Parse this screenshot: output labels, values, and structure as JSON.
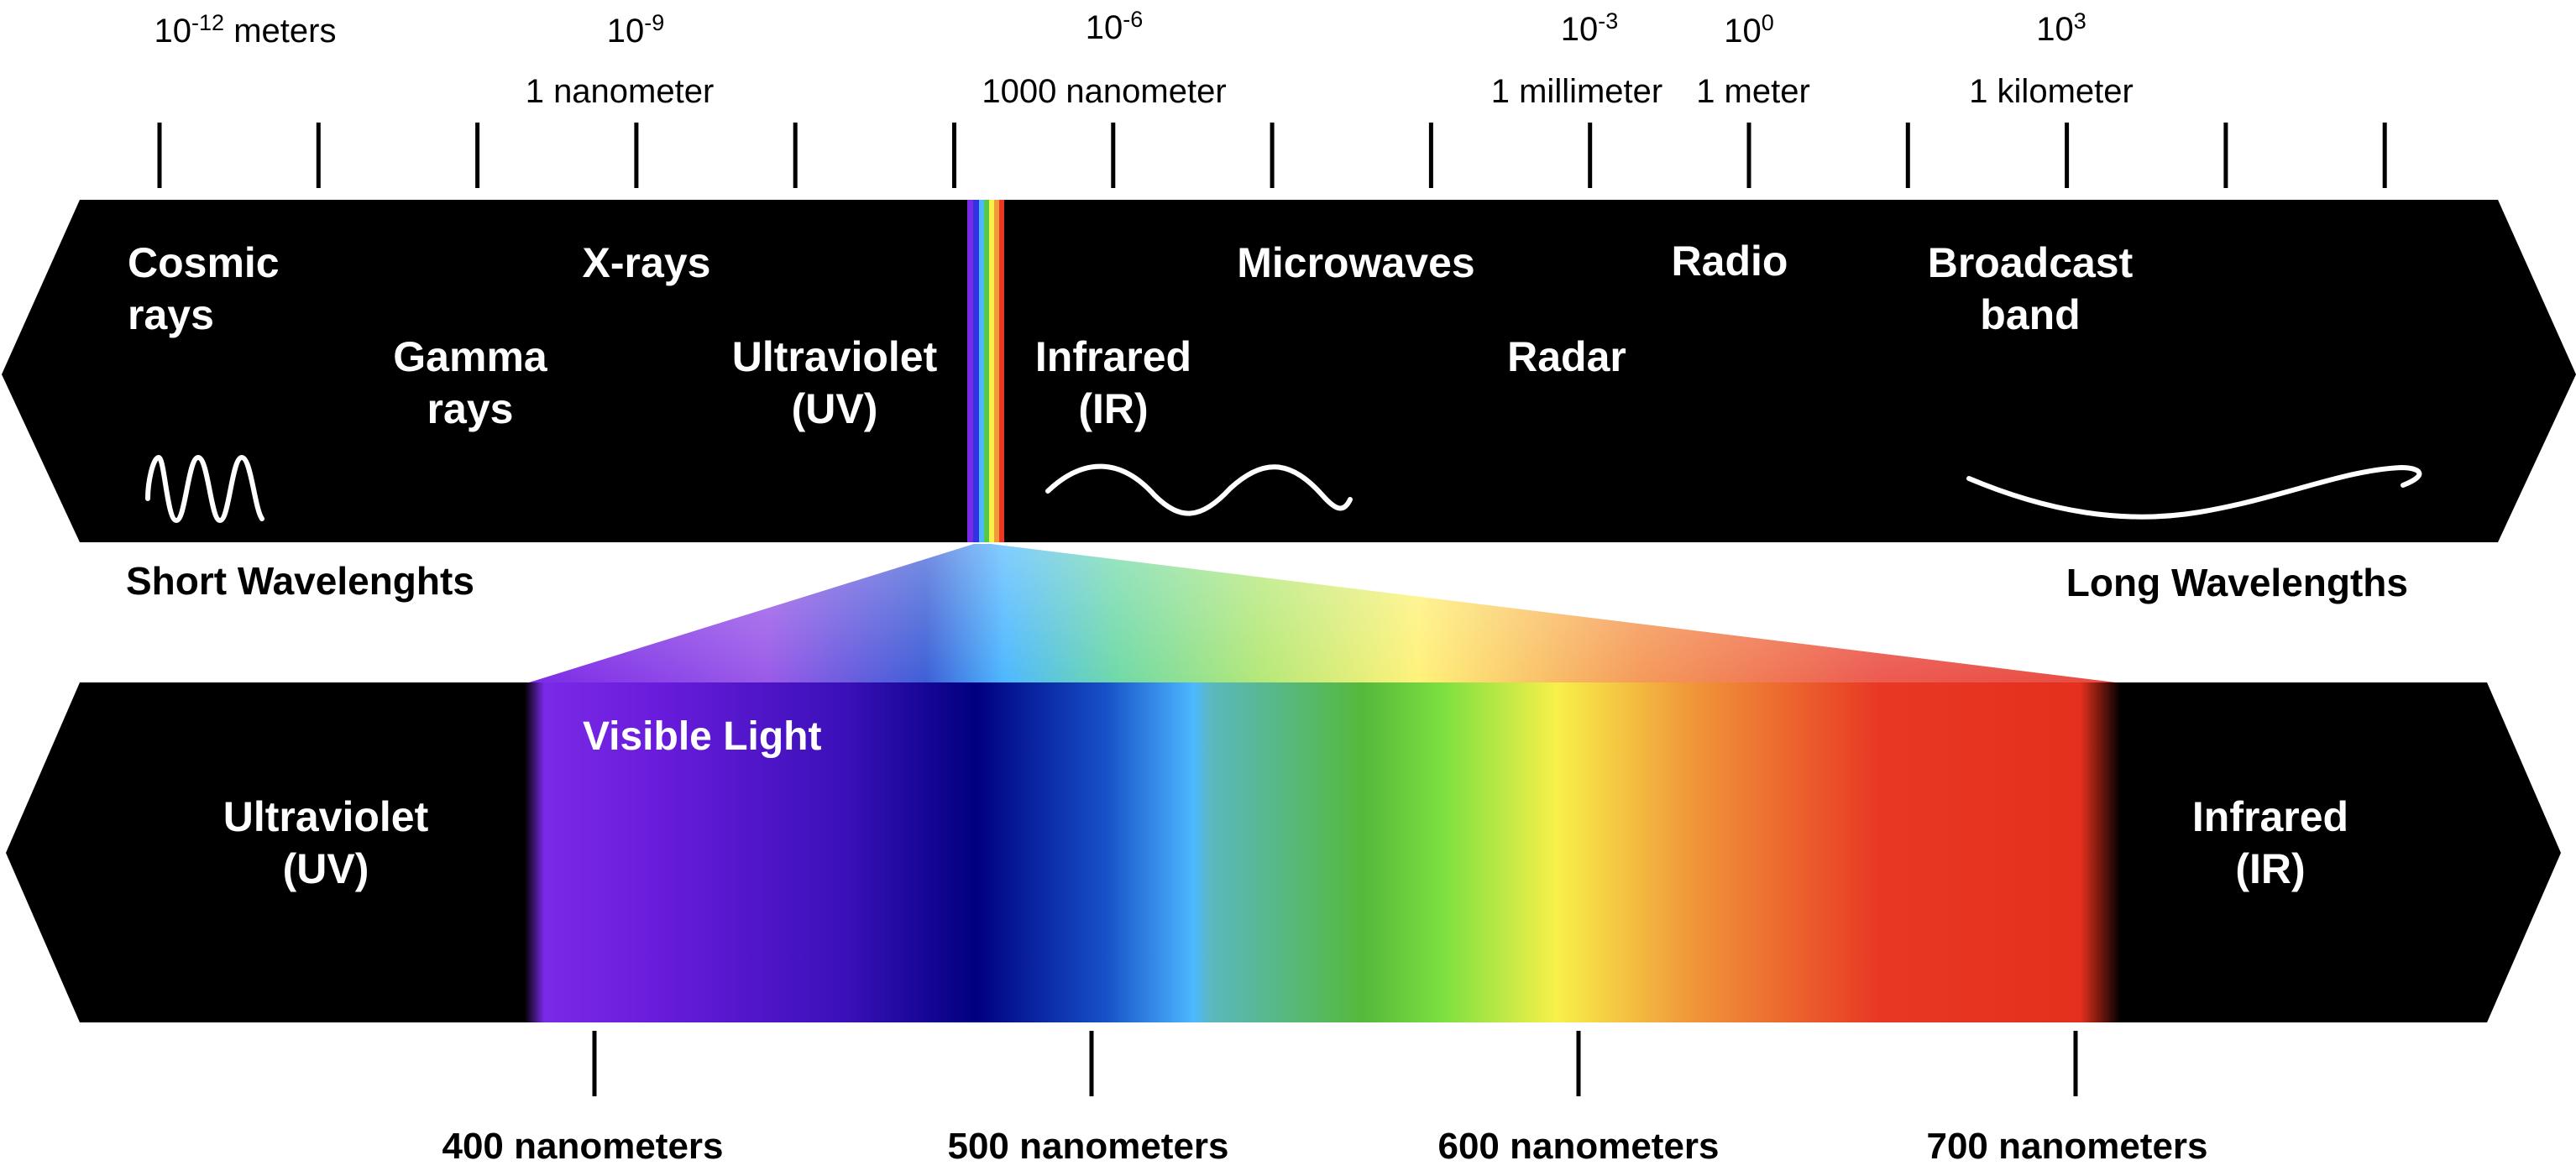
{
  "scale_labels": [
    {
      "id": "m12",
      "base": "10",
      "exp": "-12",
      "unit": " meters",
      "sub": ""
    },
    {
      "id": "m9",
      "base": "10",
      "exp": "-9",
      "unit": "",
      "sub": "1 nanometer"
    },
    {
      "id": "m6",
      "base": "10",
      "exp": "-6",
      "unit": "",
      "sub": "1000 nanometer"
    },
    {
      "id": "m3",
      "base": "10",
      "exp": "-3",
      "unit": "",
      "sub": "1 millimeter"
    },
    {
      "id": "m0",
      "base": "10",
      "exp": "0",
      "unit": "",
      "sub": "1 meter"
    },
    {
      "id": "p3",
      "base": "10",
      "exp": "3",
      "unit": "",
      "sub": "1 kilometer"
    }
  ],
  "spectrum_bands": [
    {
      "id": "cosmic",
      "lines": [
        "Cosmic",
        "rays"
      ]
    },
    {
      "id": "gamma",
      "lines": [
        "Gamma",
        "rays"
      ]
    },
    {
      "id": "xrays",
      "lines": [
        "X-rays"
      ]
    },
    {
      "id": "uv",
      "lines": [
        "Ultraviolet",
        "(UV)"
      ]
    },
    {
      "id": "ir",
      "lines": [
        "Infrared",
        "(IR)"
      ]
    },
    {
      "id": "microwaves",
      "lines": [
        "Microwaves"
      ]
    },
    {
      "id": "radar",
      "lines": [
        "Radar"
      ]
    },
    {
      "id": "radio",
      "lines": [
        "Radio"
      ]
    },
    {
      "id": "broadcast",
      "lines": [
        "Broadcast",
        "band"
      ]
    }
  ],
  "direction_labels": {
    "short": "Short Wavelenghts",
    "long": "Long Wavelengths"
  },
  "visible": {
    "title": "Visible Light",
    "uv_lines": [
      "Ultraviolet",
      "(UV)"
    ],
    "ir_lines": [
      "Infrared",
      "(IR)"
    ],
    "nm_labels": [
      "400 nanometers",
      "500 nanometers",
      "600 nanometers",
      "700 nanometers"
    ]
  },
  "colors": {
    "bar": "#000000",
    "violet": "#6a1cdc",
    "blue": "#000080",
    "cyan": "#4db8ff",
    "green": "#55b93c",
    "yellow": "#f8f04a",
    "orange": "#f09a3a",
    "red": "#e83824"
  }
}
